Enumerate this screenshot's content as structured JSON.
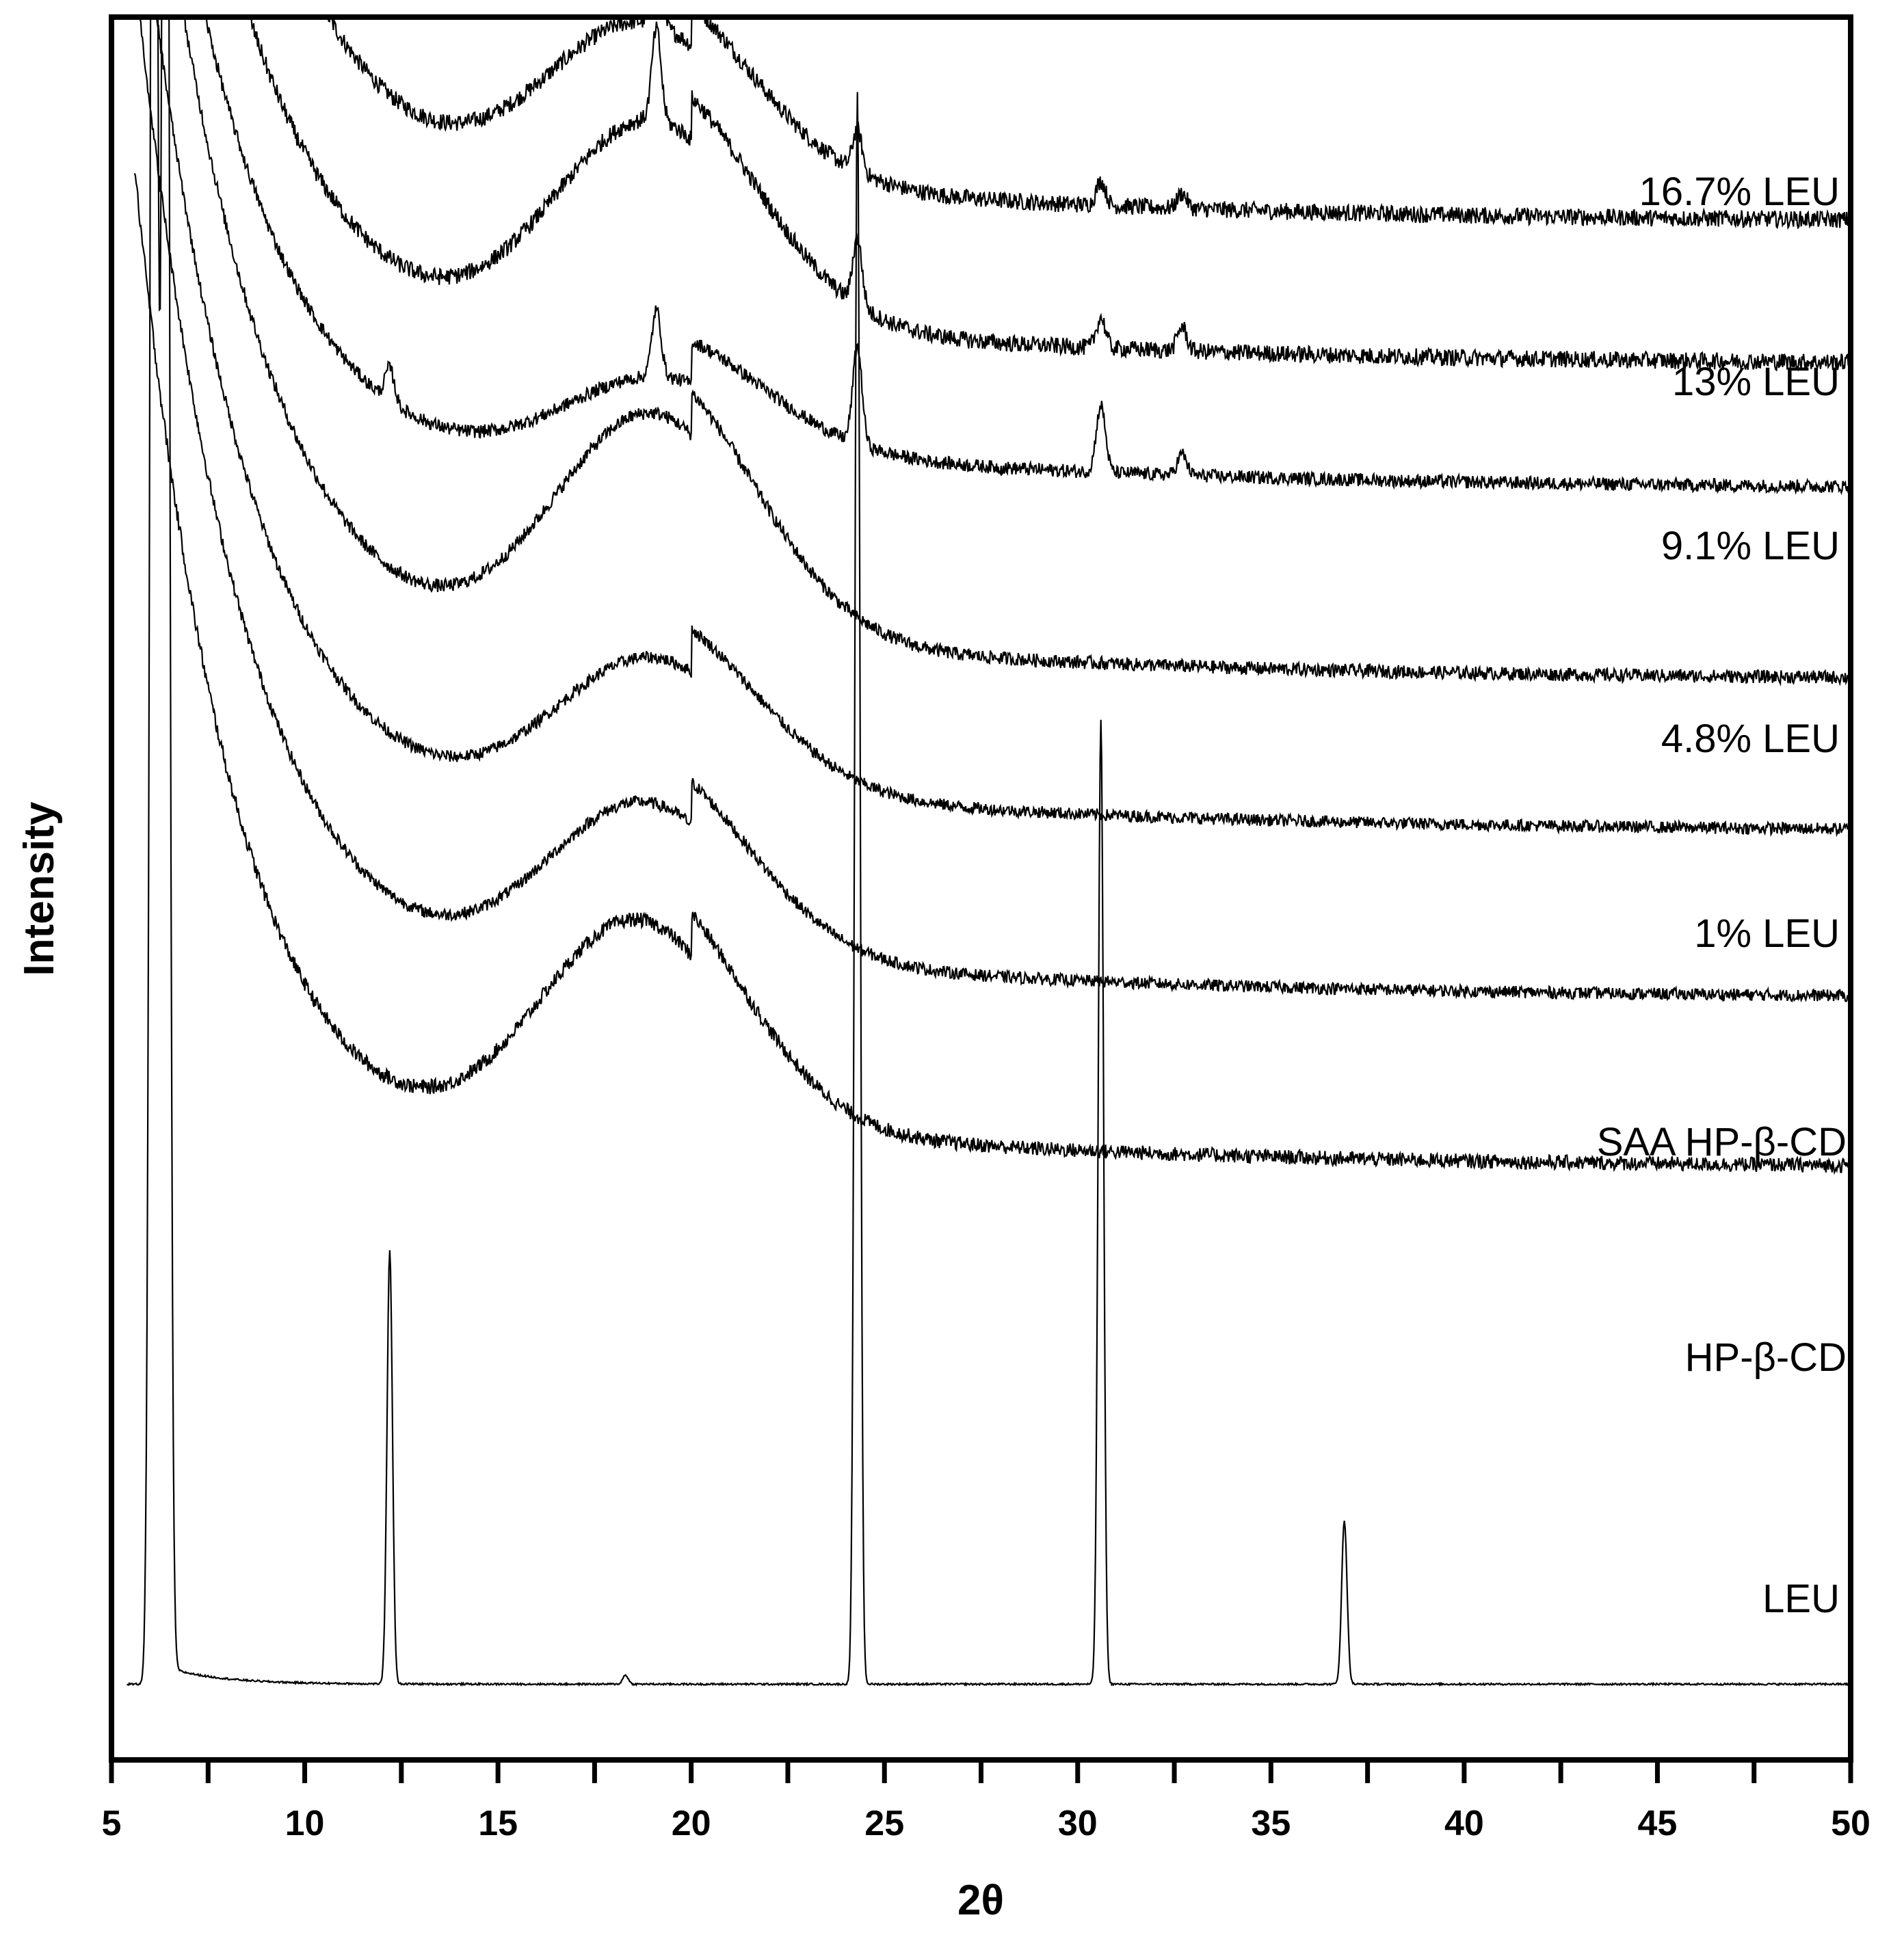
{
  "chart_data": {
    "type": "line",
    "title": "",
    "xlabel": "2θ",
    "ylabel": "Intensity",
    "xlim": [
      5,
      50
    ],
    "xticks": [
      5,
      10,
      15,
      20,
      25,
      30,
      35,
      40,
      45,
      50
    ],
    "xtick_labels": [
      "5",
      "10",
      "15",
      "20",
      "25",
      "30",
      "35",
      "40",
      "45",
      "50"
    ],
    "minor_tick_step": 2.5,
    "yticks_visible": false,
    "grid": false,
    "legend": "none",
    "stacked_offset": true,
    "line_color": "#000000",
    "series": [
      {
        "name": "16.7% LEU",
        "kind": "amorphous",
        "label_at_x": 50,
        "baseline": 1.92,
        "hump_height": 0.62,
        "hump_center": 18.8,
        "decay_amp": 3.6,
        "decay_tau": 3.0,
        "noise": 0.028,
        "peaks": [
          [
            19.1,
            0.22
          ],
          [
            24.3,
            0.14
          ],
          [
            30.6,
            0.08
          ],
          [
            32.7,
            0.05
          ]
        ]
      },
      {
        "name": "13% LEU",
        "kind": "amorphous",
        "label_at_x": 50,
        "baseline": 1.45,
        "hump_height": 0.78,
        "hump_center": 19.0,
        "decay_amp": 3.2,
        "decay_tau": 2.9,
        "noise": 0.028,
        "peaks": [
          [
            19.1,
            0.3
          ],
          [
            24.3,
            0.22
          ],
          [
            30.6,
            0.1
          ],
          [
            32.7,
            0.08
          ]
        ]
      },
      {
        "name": "9.1% LEU",
        "kind": "amorphous",
        "label_at_x": 50,
        "baseline": 1.04,
        "hump_height": 0.35,
        "hump_center": 19.2,
        "decay_amp": 3.0,
        "decay_tau": 2.8,
        "noise": 0.022,
        "peaks": [
          [
            12.2,
            0.11
          ],
          [
            19.1,
            0.22
          ],
          [
            24.3,
            0.32
          ],
          [
            30.6,
            0.22
          ],
          [
            32.7,
            0.07
          ]
        ]
      },
      {
        "name": "4.8% LEU",
        "kind": "amorphous",
        "label_at_x": 50,
        "baseline": 0.41,
        "hump_height": 0.85,
        "hump_center": 19.0,
        "decay_amp": 3.4,
        "decay_tau": 2.9,
        "noise": 0.022,
        "peaks": []
      },
      {
        "name": "1% LEU",
        "kind": "amorphous",
        "label_at_x": 50,
        "baseline": -0.09,
        "hump_height": 0.55,
        "hump_center": 19.0,
        "decay_amp": 3.3,
        "decay_tau": 2.8,
        "noise": 0.02,
        "peaks": []
      },
      {
        "name": "SAA HP-β-CD",
        "kind": "amorphous",
        "label_at_x": 50,
        "baseline": -0.64,
        "hump_height": 0.62,
        "hump_center": 18.8,
        "decay_amp": 3.4,
        "decay_tau": 2.8,
        "noise": 0.02,
        "peaks": []
      },
      {
        "name": "HP-β-CD",
        "kind": "amorphous",
        "label_at_x": 50,
        "baseline": -1.2,
        "hump_height": 0.8,
        "hump_center": 18.6,
        "decay_amp": 3.3,
        "decay_tau": 2.6,
        "noise": 0.024,
        "peaks": []
      },
      {
        "name": "LEU",
        "kind": "crystalline",
        "label_at_x": 50,
        "baseline": -2.9,
        "x_start": 5.4,
        "peaks": [
          [
            6.1,
            9.0
          ],
          [
            6.4,
            9.0
          ],
          [
            12.2,
            1.43
          ],
          [
            18.3,
            0.03
          ],
          [
            24.3,
            5.25
          ],
          [
            30.6,
            3.18
          ],
          [
            36.9,
            0.54
          ]
        ]
      }
    ]
  }
}
